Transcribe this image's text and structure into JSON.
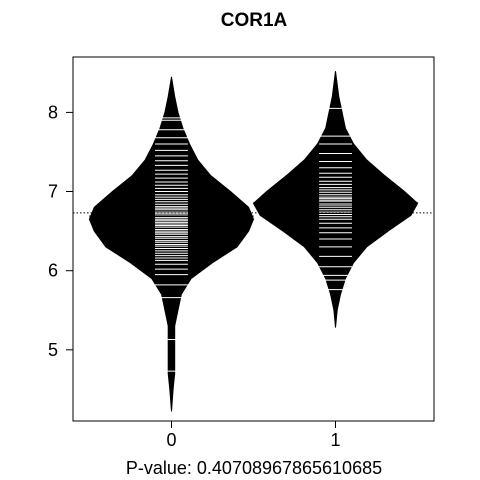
{
  "chart_data": {
    "type": "beanplot",
    "title": "COR1A",
    "xlabel": "P-value: 0.40708967865610685",
    "ylabel": "",
    "categories": [
      "0",
      "1"
    ],
    "xlim": [
      -0.6,
      1.6
    ],
    "ylim": [
      4.1,
      8.7
    ],
    "yticks": [
      5,
      6,
      7,
      8
    ],
    "xticks": [
      0,
      1
    ],
    "overall_mean": 6.73,
    "grid": false,
    "bean_color": "#000000",
    "line_color": "#ffffff",
    "beans": [
      {
        "category": "0",
        "mean": 6.69,
        "min": 4.22,
        "max": 8.45,
        "density": [
          [
            4.22,
            0.0
          ],
          [
            4.5,
            0.01
          ],
          [
            4.7,
            0.02
          ],
          [
            4.9,
            0.02
          ],
          [
            5.1,
            0.02
          ],
          [
            5.3,
            0.02
          ],
          [
            5.5,
            0.04
          ],
          [
            5.7,
            0.06
          ],
          [
            5.9,
            0.12
          ],
          [
            6.1,
            0.25
          ],
          [
            6.3,
            0.4
          ],
          [
            6.5,
            0.47
          ],
          [
            6.65,
            0.5
          ],
          [
            6.8,
            0.47
          ],
          [
            7.0,
            0.36
          ],
          [
            7.2,
            0.24
          ],
          [
            7.4,
            0.16
          ],
          [
            7.6,
            0.11
          ],
          [
            7.8,
            0.07
          ],
          [
            8.0,
            0.04
          ],
          [
            8.2,
            0.02
          ],
          [
            8.45,
            0.0
          ]
        ],
        "observations": [
          4.73,
          5.13,
          5.66,
          5.82,
          5.95,
          6.02,
          6.08,
          6.13,
          6.16,
          6.19,
          6.22,
          6.25,
          6.28,
          6.31,
          6.33,
          6.36,
          6.38,
          6.41,
          6.43,
          6.46,
          6.48,
          6.5,
          6.52,
          6.55,
          6.57,
          6.59,
          6.61,
          6.63,
          6.65,
          6.67,
          6.7,
          6.72,
          6.74,
          6.77,
          6.79,
          6.81,
          6.84,
          6.87,
          6.9,
          6.93,
          6.96,
          7.0,
          7.04,
          7.08,
          7.12,
          7.17,
          7.22,
          7.27,
          7.33,
          7.39,
          7.45,
          7.52,
          7.6,
          7.68,
          7.78,
          7.9,
          7.93
        ]
      },
      {
        "category": "1",
        "mean": 6.86,
        "min": 5.28,
        "max": 8.52,
        "density": [
          [
            5.28,
            0.0
          ],
          [
            5.5,
            0.01
          ],
          [
            5.7,
            0.03
          ],
          [
            5.9,
            0.06
          ],
          [
            6.1,
            0.11
          ],
          [
            6.3,
            0.19
          ],
          [
            6.5,
            0.32
          ],
          [
            6.7,
            0.46
          ],
          [
            6.85,
            0.5
          ],
          [
            7.0,
            0.42
          ],
          [
            7.2,
            0.3
          ],
          [
            7.4,
            0.19
          ],
          [
            7.6,
            0.11
          ],
          [
            7.8,
            0.06
          ],
          [
            8.0,
            0.04
          ],
          [
            8.2,
            0.02
          ],
          [
            8.52,
            0.0
          ]
        ],
        "observations": [
          5.76,
          5.88,
          5.94,
          6.05,
          6.18,
          6.3,
          6.4,
          6.48,
          6.54,
          6.6,
          6.65,
          6.68,
          6.71,
          6.74,
          6.77,
          6.8,
          6.83,
          6.85,
          6.87,
          6.89,
          6.91,
          6.93,
          6.96,
          6.99,
          7.02,
          7.05,
          7.09,
          7.13,
          7.18,
          7.23,
          7.3,
          7.38,
          7.48,
          7.6,
          7.7,
          8.05
        ]
      }
    ]
  }
}
